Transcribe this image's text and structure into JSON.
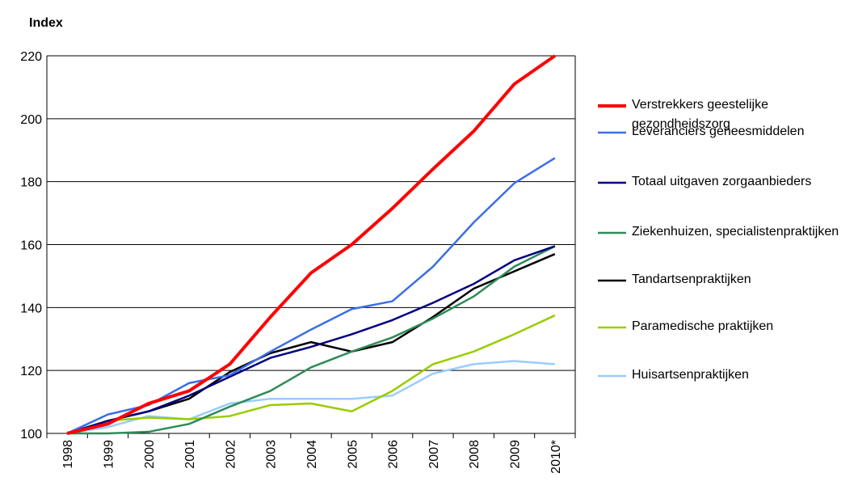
{
  "chart_data": {
    "type": "line",
    "ylabel": "Index",
    "categories": [
      "1998",
      "1999",
      "2000",
      "2001",
      "2002",
      "2003",
      "2004",
      "2005",
      "2006",
      "2007",
      "2008",
      "2009",
      "2010*"
    ],
    "ylim": [
      100,
      220
    ],
    "yticks": [
      100,
      120,
      140,
      160,
      180,
      200,
      220
    ],
    "grid": true,
    "series": [
      {
        "name": "Verstrekkers geestelijke gezondheidszorg",
        "color": "#ff0000",
        "values": [
          100,
          103,
          109.5,
          113.5,
          122,
          137,
          151,
          160,
          171.5,
          184,
          196,
          211,
          220
        ]
      },
      {
        "name": "Leveranciers geneesmiddelen",
        "color": "#3b6ee8",
        "values": [
          100,
          106,
          109,
          116,
          118.5,
          126,
          133,
          139.5,
          142,
          153,
          167,
          179.5,
          187.5
        ]
      },
      {
        "name": "Totaal uitgaven zorgaanbieders",
        "color": "#000080",
        "values": [
          100,
          104,
          107,
          112,
          118,
          124,
          127.5,
          131.5,
          136,
          141.5,
          147.5,
          155,
          159.5
        ]
      },
      {
        "name": "Ziekenhuizen, specialistenpraktijken",
        "color": "#2e8b57",
        "values": [
          100,
          100,
          100.5,
          103,
          108.5,
          113.5,
          121,
          126,
          130.5,
          136.5,
          143.5,
          153,
          159.5
        ]
      },
      {
        "name": "Tandartsenpraktijken",
        "color": "#000000",
        "values": [
          100,
          104,
          107,
          111,
          119.5,
          125.5,
          129,
          126,
          129,
          137,
          146,
          151.5,
          157
        ]
      },
      {
        "name": "Paramedische praktijken",
        "color": "#99cc00",
        "values": [
          100,
          104,
          105,
          104.5,
          105.5,
          109,
          109.5,
          107,
          113.5,
          122,
          126,
          131.5,
          137.5
        ]
      },
      {
        "name": "Huisartsenpraktijken",
        "color": "#99ccff",
        "values": [
          100,
          102,
          105.5,
          104.5,
          109.5,
          111,
          111,
          111,
          112,
          119,
          122,
          123,
          122
        ]
      }
    ]
  }
}
